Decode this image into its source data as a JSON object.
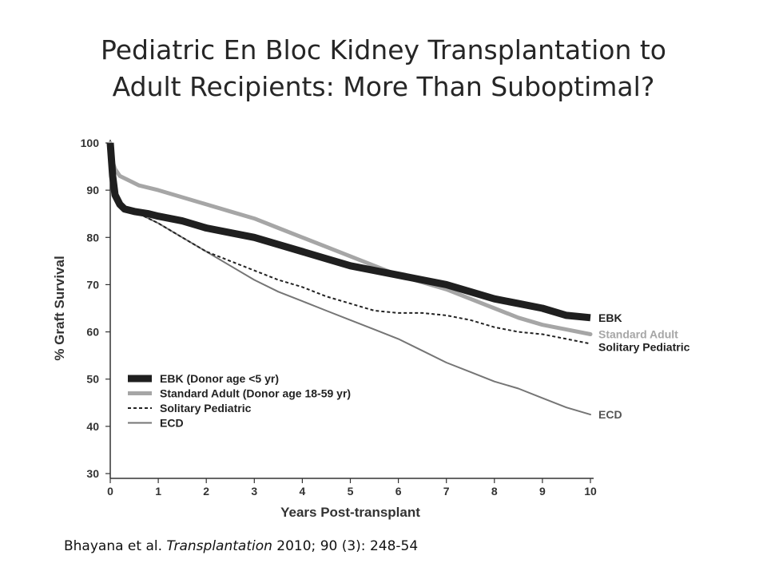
{
  "slide": {
    "title_line1": "Pediatric En Bloc Kidney Transplantation to",
    "title_line2": "Adult Recipients: More Than Suboptimal?"
  },
  "citation": {
    "authors": "Bhayana et al.",
    "journal": "Transplantation",
    "details": "2010; 90 (3): 248-54"
  },
  "chart_data": {
    "type": "line",
    "title": "",
    "xlabel": "Years Post-transplant",
    "ylabel": "% Graft Survival",
    "xlim": [
      0,
      10
    ],
    "ylim": [
      30,
      100
    ],
    "xticks": [
      0,
      1,
      2,
      3,
      4,
      5,
      6,
      7,
      8,
      9,
      10
    ],
    "yticks": [
      30,
      40,
      50,
      60,
      70,
      80,
      90,
      100
    ],
    "grid": false,
    "legend_position": "bottom-left",
    "series": [
      {
        "name": "EBK (Donor age <5 yr)",
        "end_label": "EBK",
        "style": "thick-dark",
        "color": "#1f1f1f",
        "x": [
          0,
          0.05,
          0.1,
          0.2,
          0.3,
          0.5,
          0.8,
          1,
          1.5,
          2,
          2.5,
          3,
          3.5,
          4,
          4.5,
          5,
          5.5,
          6,
          6.5,
          7,
          7.5,
          8,
          8.5,
          9,
          9.5,
          10
        ],
        "y": [
          100,
          93,
          89,
          87,
          86,
          85.5,
          85,
          84.5,
          83.5,
          82,
          81,
          80,
          78.5,
          77,
          75.5,
          74,
          73,
          72,
          71,
          70,
          68.5,
          67,
          66,
          65,
          63.5,
          63
        ]
      },
      {
        "name": "Standard Adult (Donor age 18-59 yr)",
        "end_label": "Standard Adult",
        "style": "thick-gray",
        "color": "#a6a6a6",
        "x": [
          0,
          0.05,
          0.1,
          0.2,
          0.4,
          0.6,
          1,
          1.5,
          2,
          2.5,
          3,
          3.5,
          4,
          4.5,
          5,
          5.5,
          6,
          6.5,
          7,
          7.5,
          8,
          8.5,
          9,
          9.5,
          10
        ],
        "y": [
          100,
          96,
          94.5,
          93,
          92,
          91,
          90,
          88.5,
          87,
          85.5,
          84,
          82,
          80,
          78,
          76,
          74,
          72,
          70.5,
          69,
          67,
          65,
          63,
          61.5,
          60.5,
          59.5
        ]
      },
      {
        "name": "Solitary Pediatric",
        "end_label": "Solitary Pediatric",
        "style": "dotted",
        "color": "#222222",
        "x": [
          0,
          0.05,
          0.1,
          0.2,
          0.4,
          0.6,
          1,
          1.5,
          2,
          2.5,
          3,
          3.5,
          4,
          4.5,
          5,
          5.5,
          6,
          6.5,
          7,
          7.5,
          8,
          8.5,
          9,
          9.5,
          10
        ],
        "y": [
          100,
          93,
          89,
          87,
          86,
          85,
          83,
          80,
          77,
          75,
          73,
          71,
          69.5,
          67.5,
          66,
          64.5,
          64,
          64,
          63.5,
          62.5,
          61,
          60,
          59.5,
          58.5,
          57.5
        ]
      },
      {
        "name": "ECD",
        "end_label": "ECD",
        "style": "thin-gray",
        "color": "#757575",
        "x": [
          0,
          0.05,
          0.1,
          0.2,
          0.4,
          0.6,
          1,
          1.5,
          2,
          2.5,
          3,
          3.5,
          4,
          4.5,
          5,
          5.5,
          6,
          6.5,
          7,
          7.5,
          8,
          8.5,
          9,
          9.5,
          10
        ],
        "y": [
          100,
          92,
          89,
          87,
          86,
          85,
          83,
          80,
          77,
          74,
          71,
          68.5,
          66.5,
          64.5,
          62.5,
          60.5,
          58.5,
          56,
          53.5,
          51.5,
          49.5,
          48,
          46,
          44,
          42.5
        ]
      }
    ]
  }
}
